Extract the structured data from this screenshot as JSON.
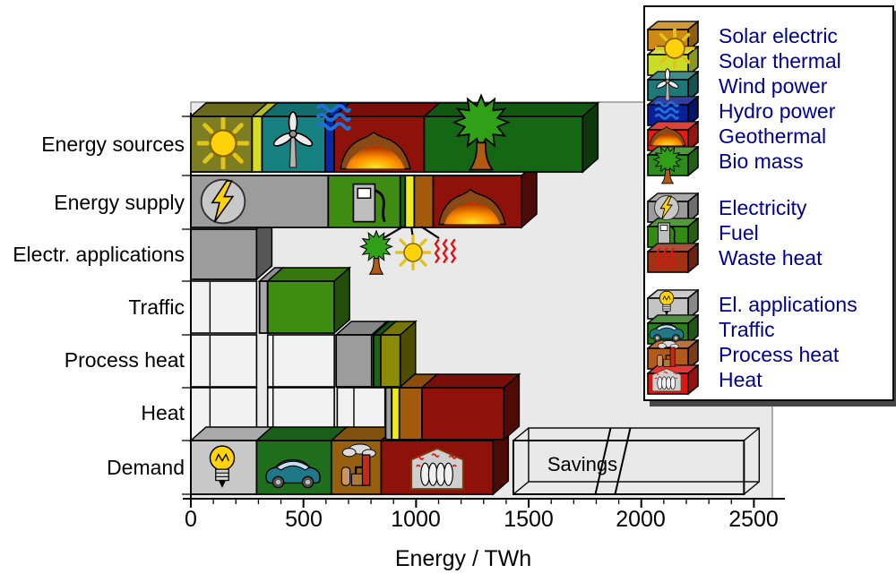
{
  "axis": {
    "title": "Energy / TWh",
    "tick_labels": [
      "0",
      "500",
      "1000",
      "1500",
      "2000",
      "2500"
    ],
    "range_twh": [
      0,
      2500
    ],
    "major_tick_step_twh": 500,
    "minor_tick_step_twh": 100
  },
  "chart_data": {
    "type": "bar",
    "orientation": "horizontal-stacked-3d",
    "unit": "TWh",
    "background_color": "#E9E9E9",
    "rows": [
      {
        "name": "sources",
        "label": "Energy sources",
        "segments": [
          {
            "legend_ref": "Solar electric",
            "color": "#7D7D21",
            "from_twh": 0,
            "to_twh": 272,
            "value_twh": 272,
            "icon": "sun-icon"
          },
          {
            "legend_ref": "Solar thermal",
            "color": "#D6DE23",
            "from_twh": 272,
            "to_twh": 316,
            "value_twh": 44
          },
          {
            "legend_ref": "Wind power",
            "color": "#178080",
            "from_twh": 316,
            "to_twh": 597,
            "value_twh": 281,
            "icon": "wind-turbine-icon"
          },
          {
            "legend_ref": "Hydro power",
            "color": "#0A28A0",
            "from_twh": 597,
            "to_twh": 637,
            "value_twh": 40,
            "icon": "water-waves-icon"
          },
          {
            "legend_ref": "Geothermal",
            "color": "#8E1209",
            "from_twh": 637,
            "to_twh": 1036,
            "value_twh": 399,
            "icon": "magma-icon"
          },
          {
            "legend_ref": "Bio mass",
            "color": "#156615",
            "from_twh": 1036,
            "to_twh": 1740,
            "value_twh": 704,
            "icon": "tree-icon"
          }
        ],
        "outline_boxes": []
      },
      {
        "name": "supply",
        "label": "Energy supply",
        "segments": [
          {
            "legend_ref": "Electricity",
            "color": "#9C9C9C",
            "from_twh": 0,
            "to_twh": 610,
            "value_twh": 610,
            "icon": "lightning-icon"
          },
          {
            "legend_ref": "Fuel",
            "color": "#3F8C13",
            "from_twh": 610,
            "to_twh": 930,
            "value_twh": 320,
            "icon": "fuel-pump-icon"
          },
          {
            "legend_ref": "Bio mass",
            "color": "#156615",
            "from_twh": 930,
            "to_twh": 952,
            "value_twh": 22
          },
          {
            "legend_ref": "Solar thermal",
            "color": "#EEEA1E",
            "from_twh": 952,
            "to_twh": 992,
            "value_twh": 40
          },
          {
            "legend_ref": "Waste heat",
            "color": "#A35B0B",
            "from_twh": 992,
            "to_twh": 1076,
            "value_twh": 84
          },
          {
            "legend_ref": "Geothermal",
            "color": "#8E1209",
            "from_twh": 1076,
            "to_twh": 1468,
            "value_twh": 392,
            "icon": "magma-icon"
          }
        ],
        "outline_boxes": []
      },
      {
        "name": "elapp",
        "label": "Electr. applications",
        "segments": [
          {
            "legend_ref": "Electricity",
            "color": "#9C9C9C",
            "from_twh": 0,
            "to_twh": 292,
            "value_twh": 292
          }
        ],
        "outline_boxes": []
      },
      {
        "name": "traffic",
        "label": "Traffic",
        "segments": [
          {
            "legend_ref": "Electricity",
            "color": "#A8A8A8",
            "from_twh": 305,
            "to_twh": 341,
            "value_twh": 36
          },
          {
            "legend_ref": "Fuel",
            "color": "#3F8C13",
            "from_twh": 341,
            "to_twh": 637,
            "value_twh": 296
          }
        ],
        "outline_boxes": [
          {
            "from_twh": 0,
            "to_twh": 292,
            "divider_twh": 85
          }
        ]
      },
      {
        "name": "process",
        "label": "Process heat",
        "segments": [
          {
            "legend_ref": "Electricity",
            "color": "#9C9C9C",
            "from_twh": 645,
            "to_twh": 803,
            "value_twh": 158
          },
          {
            "legend_ref": "divider",
            "color": "#FFFFFF",
            "from_twh": 803,
            "to_twh": 811,
            "value_twh": 8
          },
          {
            "legend_ref": "Bio mass",
            "color": "#156615",
            "from_twh": 811,
            "to_twh": 843,
            "value_twh": 32
          },
          {
            "legend_ref": "Solar thermal",
            "color": "#8B8B05",
            "from_twh": 843,
            "to_twh": 930,
            "value_twh": 87
          }
        ],
        "outline_boxes": [
          {
            "from_twh": 0,
            "to_twh": 292,
            "divider_twh": 85
          },
          {
            "from_twh": 341,
            "to_twh": 637,
            "divider_twh": 365
          }
        ]
      },
      {
        "name": "heat",
        "label": "Heat",
        "segments": [
          {
            "legend_ref": "Electricity",
            "color": "#9C9C9C",
            "from_twh": 865,
            "to_twh": 892,
            "value_twh": 27
          },
          {
            "legend_ref": "Solar thermal",
            "color": "#EEEA1E",
            "from_twh": 892,
            "to_twh": 926,
            "value_twh": 34
          },
          {
            "legend_ref": "Waste heat",
            "color": "#A35B0B",
            "from_twh": 926,
            "to_twh": 1026,
            "value_twh": 100
          },
          {
            "legend_ref": "Geothermal",
            "color": "#8E1209",
            "from_twh": 1026,
            "to_twh": 1390,
            "value_twh": 364
          }
        ],
        "outline_boxes": [
          {
            "from_twh": 0,
            "to_twh": 292,
            "divider_twh": 85
          },
          {
            "from_twh": 341,
            "to_twh": 637,
            "divider_twh": 365
          },
          {
            "from_twh": 650,
            "to_twh": 862,
            "divider_twh": 724
          }
        ]
      },
      {
        "name": "demand",
        "label": "Demand",
        "segments": [
          {
            "legend_ref": "El. applications",
            "color": "#C8C8C8",
            "from_twh": 0,
            "to_twh": 292,
            "value_twh": 292,
            "icon": "light-bulb-icon"
          },
          {
            "legend_ref": "Traffic",
            "color": "#1E6E1E",
            "from_twh": 292,
            "to_twh": 624,
            "value_twh": 332,
            "icon": "car-icon"
          },
          {
            "legend_ref": "Process heat",
            "color": "#96600F",
            "from_twh": 624,
            "to_twh": 845,
            "value_twh": 221,
            "icon": "factory-icon"
          },
          {
            "legend_ref": "Heat",
            "color": "#8E1209",
            "from_twh": 845,
            "to_twh": 1342,
            "value_twh": 497,
            "icon": "radiator-icon"
          }
        ],
        "outline_boxes": []
      }
    ],
    "savings": {
      "label": "Savings",
      "from_twh": 1432,
      "to_twh": 2456,
      "break_at_twh": 1828
    },
    "annotations": [
      {
        "icon": "tree-icon",
        "legend_ref": "Bio mass",
        "points_to_twh": 941
      },
      {
        "icon": "sun-icon",
        "legend_ref": "Solar thermal",
        "points_to_twh": 972
      },
      {
        "icon": "heat-squiggle-icon",
        "legend_ref": "Waste heat",
        "points_to_twh": 1030
      }
    ]
  },
  "legend": {
    "text_color": "#00008C",
    "groups": [
      {
        "items": [
          {
            "label": "Solar electric",
            "color": "#CC8A14",
            "icon": "sun-icon"
          },
          {
            "label": "Solar thermal",
            "color": "#C8DC28",
            "icon": "sun-icon"
          },
          {
            "label": "Wind power",
            "color": "#1E7878",
            "icon": "wind-turbine-icon"
          },
          {
            "label": "Hydro power",
            "color": "#0A1E96",
            "icon": "water-waves-icon"
          },
          {
            "label": "Geothermal",
            "color": "#DC1E14",
            "icon": "magma-icon"
          },
          {
            "label": "Bio mass",
            "color": "#2E8C1E",
            "icon": "tree-icon"
          }
        ]
      },
      {
        "items": [
          {
            "label": "Electricity",
            "color": "#9C9C9C",
            "icon": "lightning-icon"
          },
          {
            "label": "Fuel",
            "color": "#348A14",
            "icon": "fuel-pump-icon"
          },
          {
            "label": "Waste heat",
            "color": "#A03214",
            "icon": "heat-squiggle-icon"
          }
        ]
      },
      {
        "items": [
          {
            "label": "El. applications",
            "color": "#C4C4C4",
            "icon": "light-bulb-icon"
          },
          {
            "label": "Traffic",
            "color": "#2E7D1E",
            "icon": "car-icon"
          },
          {
            "label": "Process heat",
            "color": "#B05A1E",
            "icon": "factory-icon"
          },
          {
            "label": "Heat",
            "color": "#E01414",
            "icon": "radiator-icon"
          }
        ]
      }
    ]
  }
}
